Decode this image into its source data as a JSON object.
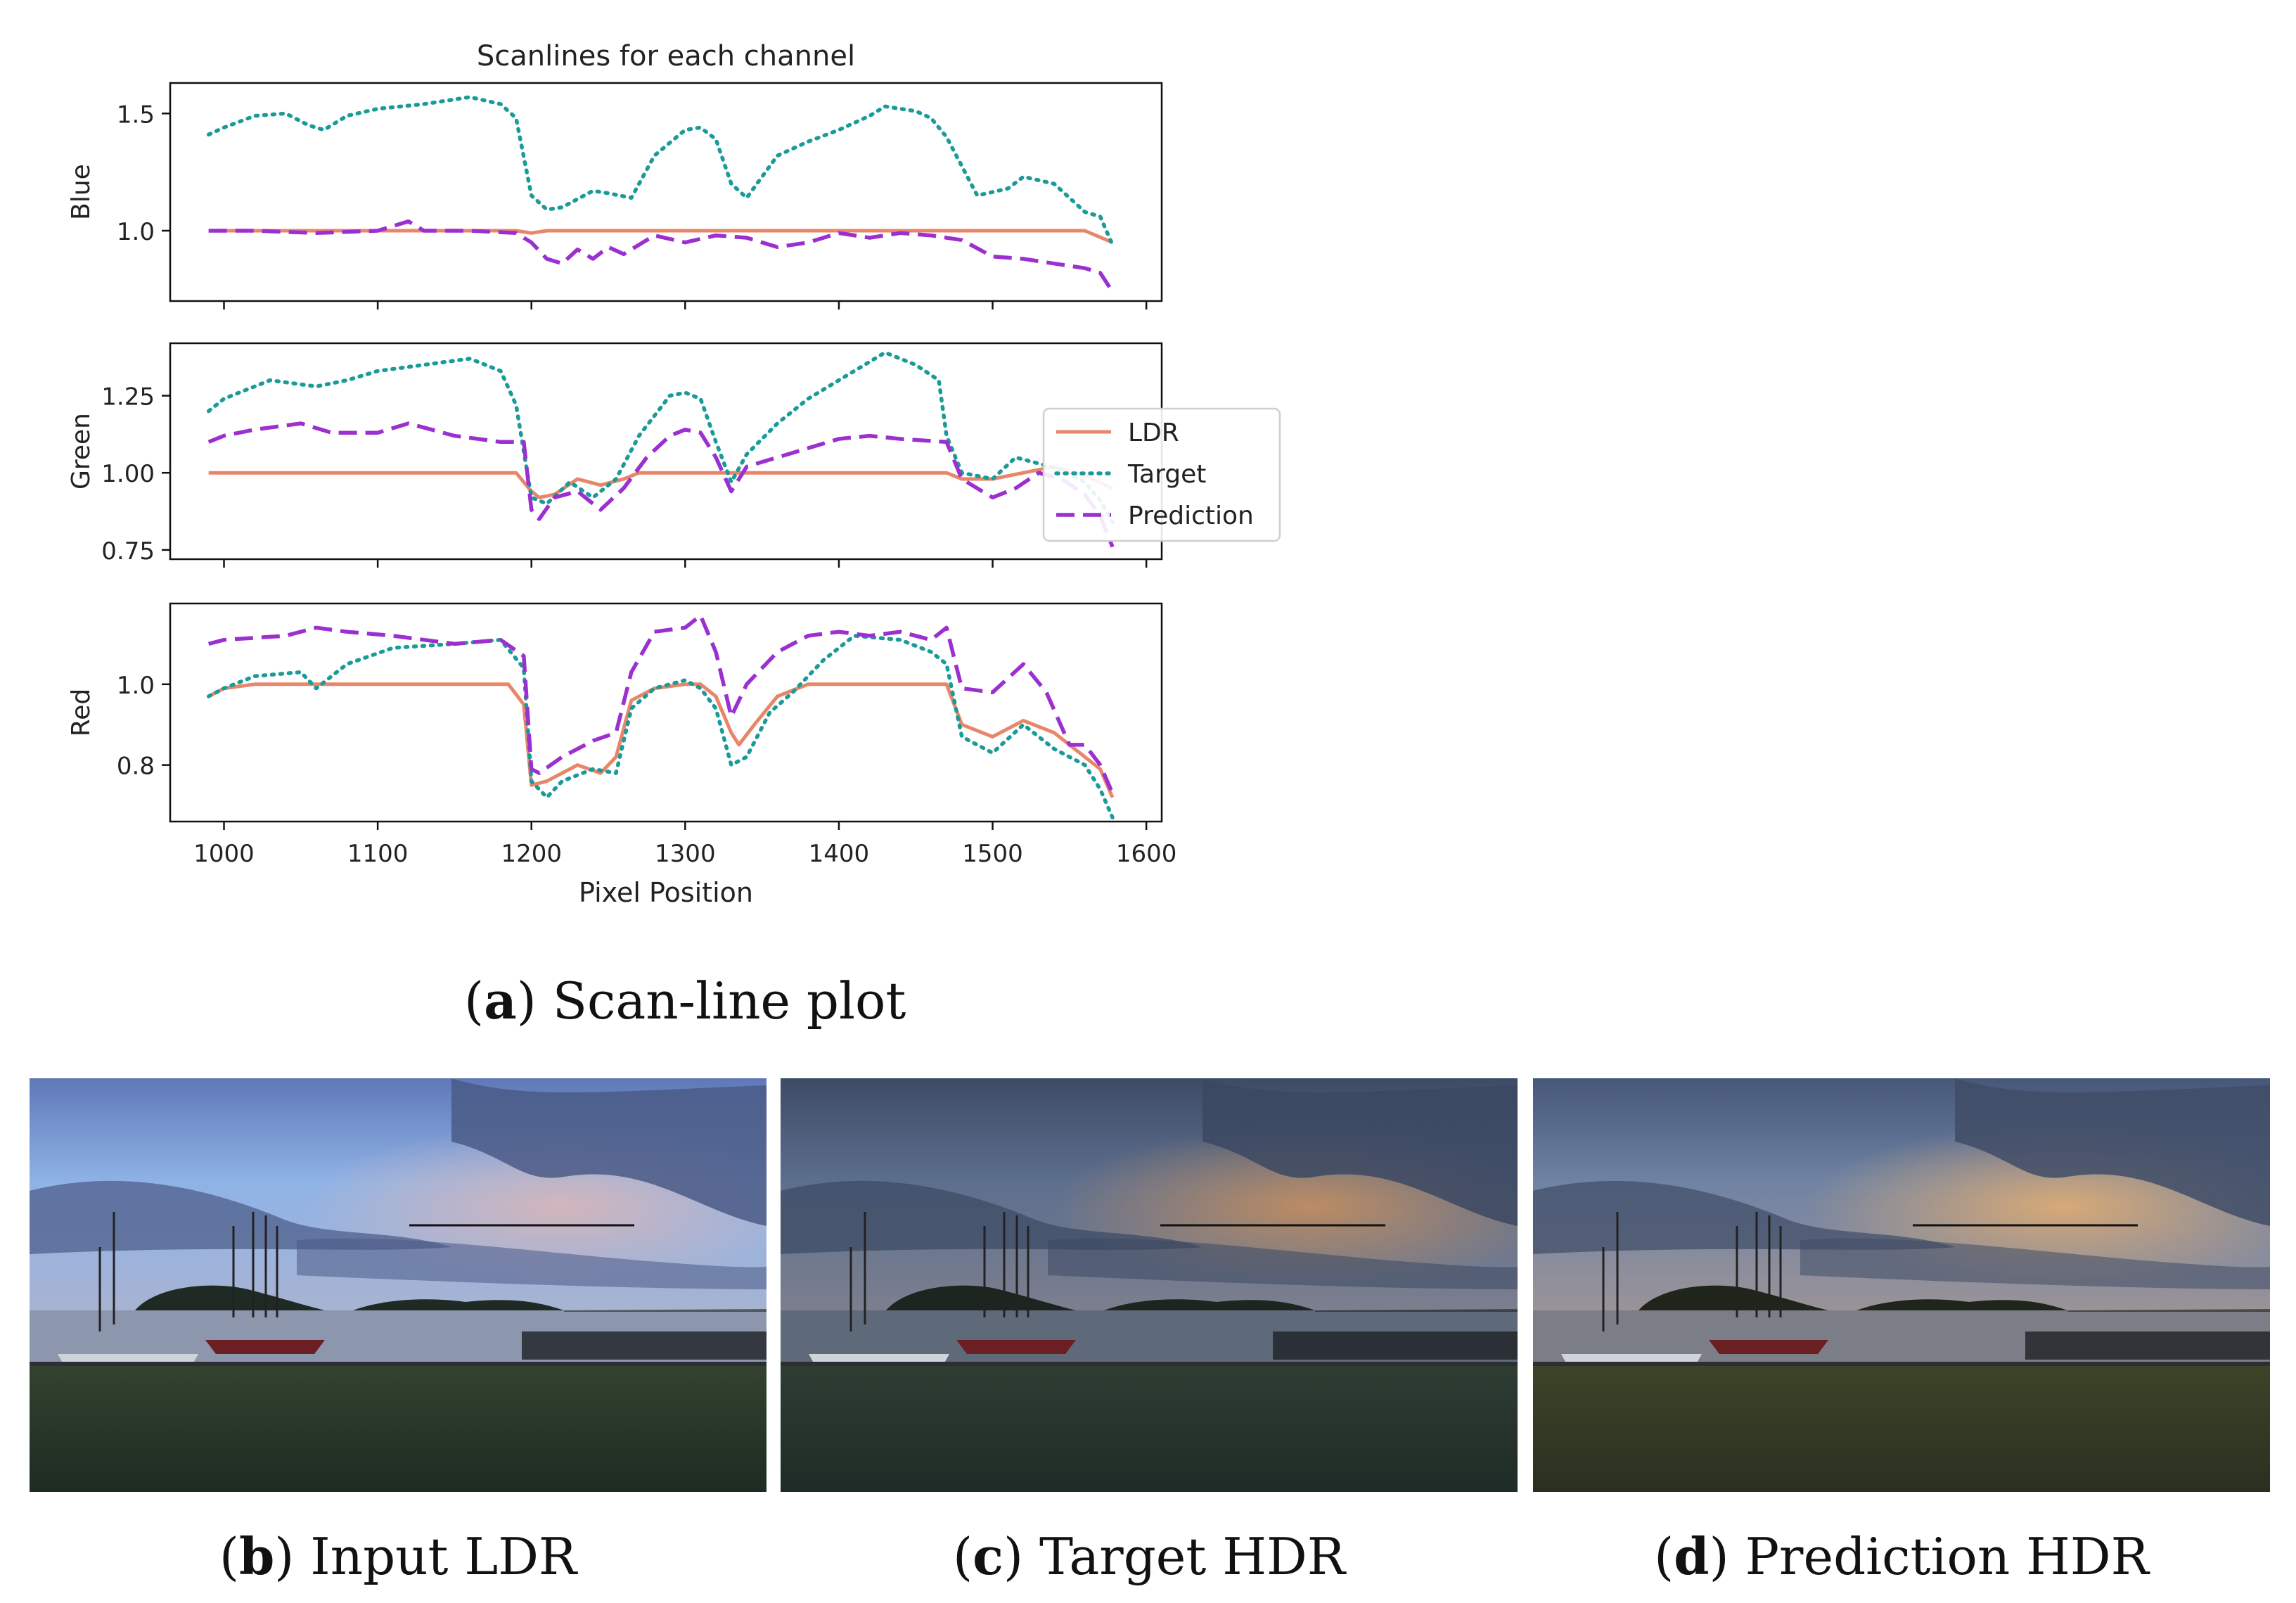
{
  "figure": {
    "chart_caption": {
      "letter": "a",
      "text": "Scan-line plot"
    },
    "photos": [
      {
        "id": "b",
        "letter": "b",
        "text": "Input LDR",
        "tone": "ldr"
      },
      {
        "id": "c",
        "letter": "c",
        "text": "Target HDR",
        "tone": "target"
      },
      {
        "id": "d",
        "letter": "d",
        "text": "Prediction HDR",
        "tone": "prediction"
      }
    ]
  },
  "chart_data": {
    "type": "line",
    "title": "Scanlines for each channel",
    "xlabel": "Pixel Position",
    "xlim": [
      965,
      1610
    ],
    "xticks": [
      1000,
      1100,
      1200,
      1300,
      1400,
      1500,
      1600
    ],
    "legend": {
      "placement": "right of middle panel",
      "entries": [
        "LDR",
        "Target",
        "Prediction"
      ]
    },
    "series_styles": {
      "LDR": {
        "color": "#e8866a",
        "dash": "solid"
      },
      "Target": {
        "color": "#1a9a98",
        "dash": "dotted"
      },
      "Prediction": {
        "color": "#9b2fd0",
        "dash": "dashed"
      }
    },
    "panels": [
      {
        "ylabel": "Blue",
        "ylim": [
          0.7,
          1.63
        ],
        "yticks": [
          1.0,
          1.5
        ],
        "ytick_labels": [
          "1.0",
          "1.5"
        ],
        "series": [
          {
            "name": "LDR",
            "x": [
              990,
              1100,
              1190,
              1200,
              1210,
              1300,
              1400,
              1500,
              1560,
              1578
            ],
            "y": [
              1.0,
              1.0,
              1.0,
              0.99,
              1.0,
              1.0,
              1.0,
              1.0,
              1.0,
              0.95
            ]
          },
          {
            "name": "Target",
            "x": [
              990,
              1000,
              1020,
              1040,
              1055,
              1065,
              1080,
              1100,
              1130,
              1160,
              1180,
              1190,
              1200,
              1210,
              1220,
              1240,
              1250,
              1265,
              1280,
              1300,
              1310,
              1320,
              1330,
              1340,
              1360,
              1380,
              1400,
              1420,
              1430,
              1450,
              1460,
              1470,
              1490,
              1510,
              1520,
              1540,
              1560,
              1570,
              1578
            ],
            "y": [
              1.41,
              1.44,
              1.49,
              1.5,
              1.45,
              1.43,
              1.49,
              1.52,
              1.54,
              1.57,
              1.54,
              1.48,
              1.15,
              1.09,
              1.1,
              1.17,
              1.16,
              1.14,
              1.32,
              1.43,
              1.44,
              1.39,
              1.2,
              1.14,
              1.32,
              1.38,
              1.43,
              1.49,
              1.53,
              1.51,
              1.48,
              1.4,
              1.15,
              1.18,
              1.23,
              1.2,
              1.08,
              1.06,
              0.94
            ]
          },
          {
            "name": "Prediction",
            "x": [
              990,
              1020,
              1060,
              1100,
              1120,
              1130,
              1160,
              1190,
              1200,
              1210,
              1220,
              1230,
              1240,
              1250,
              1260,
              1280,
              1300,
              1320,
              1340,
              1360,
              1380,
              1400,
              1420,
              1440,
              1460,
              1480,
              1500,
              1520,
              1540,
              1560,
              1570,
              1578
            ],
            "y": [
              1.0,
              1.0,
              0.99,
              1.0,
              1.04,
              1.0,
              1.0,
              0.99,
              0.95,
              0.88,
              0.86,
              0.92,
              0.88,
              0.93,
              0.9,
              0.98,
              0.95,
              0.98,
              0.97,
              0.93,
              0.95,
              0.99,
              0.97,
              0.99,
              0.98,
              0.96,
              0.89,
              0.88,
              0.86,
              0.84,
              0.82,
              0.74
            ]
          }
        ]
      },
      {
        "ylabel": "Green",
        "ylim": [
          0.72,
          1.42
        ],
        "yticks": [
          0.75,
          1.0,
          1.25
        ],
        "ytick_labels": [
          "0.75",
          "1.00",
          "1.25"
        ],
        "series": [
          {
            "name": "LDR",
            "x": [
              990,
              1100,
              1190,
              1200,
              1205,
              1215,
              1230,
              1245,
              1260,
              1270,
              1300,
              1400,
              1470,
              1480,
              1500,
              1520,
              1540,
              1560,
              1578
            ],
            "y": [
              1.0,
              1.0,
              1.0,
              0.94,
              0.92,
              0.93,
              0.98,
              0.96,
              0.98,
              1.0,
              1.0,
              1.0,
              1.0,
              0.98,
              0.98,
              1.0,
              1.02,
              0.99,
              0.95
            ]
          },
          {
            "name": "Target",
            "x": [
              990,
              1000,
              1030,
              1060,
              1080,
              1100,
              1130,
              1160,
              1180,
              1190,
              1200,
              1210,
              1225,
              1240,
              1255,
              1270,
              1290,
              1300,
              1310,
              1320,
              1330,
              1340,
              1360,
              1380,
              1400,
              1420,
              1430,
              1450,
              1465,
              1470,
              1480,
              1500,
              1515,
              1530,
              1545,
              1560,
              1570,
              1578
            ],
            "y": [
              1.2,
              1.24,
              1.3,
              1.28,
              1.3,
              1.33,
              1.35,
              1.37,
              1.33,
              1.22,
              0.92,
              0.9,
              0.97,
              0.92,
              0.98,
              1.12,
              1.25,
              1.26,
              1.24,
              1.1,
              0.97,
              1.06,
              1.16,
              1.24,
              1.3,
              1.36,
              1.39,
              1.35,
              1.3,
              1.12,
              1.0,
              0.98,
              1.05,
              1.03,
              1.01,
              0.97,
              0.91,
              0.84
            ]
          },
          {
            "name": "Prediction",
            "x": [
              990,
              1000,
              1020,
              1050,
              1070,
              1100,
              1120,
              1150,
              1180,
              1195,
              1200,
              1205,
              1215,
              1230,
              1245,
              1260,
              1275,
              1290,
              1300,
              1310,
              1320,
              1330,
              1340,
              1360,
              1380,
              1400,
              1420,
              1440,
              1470,
              1480,
              1500,
              1515,
              1530,
              1545,
              1560,
              1570,
              1578
            ],
            "y": [
              1.1,
              1.12,
              1.14,
              1.16,
              1.13,
              1.13,
              1.16,
              1.12,
              1.1,
              1.1,
              0.88,
              0.85,
              0.92,
              0.94,
              0.88,
              0.95,
              1.05,
              1.12,
              1.14,
              1.13,
              1.05,
              0.94,
              1.02,
              1.05,
              1.08,
              1.11,
              1.12,
              1.11,
              1.1,
              0.98,
              0.92,
              0.95,
              1.0,
              0.98,
              0.93,
              0.86,
              0.76
            ]
          }
        ]
      },
      {
        "ylabel": "Red",
        "ylim": [
          0.66,
          1.2
        ],
        "yticks": [
          0.8,
          1.0
        ],
        "ytick_labels": [
          "0.8",
          "1.0"
        ],
        "series": [
          {
            "name": "LDR",
            "x": [
              990,
              1000,
              1020,
              1100,
              1185,
              1195,
              1200,
              1210,
              1230,
              1245,
              1255,
              1265,
              1280,
              1300,
              1310,
              1320,
              1330,
              1335,
              1345,
              1360,
              1380,
              1470,
              1480,
              1500,
              1520,
              1540,
              1560,
              1570,
              1578
            ],
            "y": [
              0.97,
              0.99,
              1.0,
              1.0,
              1.0,
              0.95,
              0.75,
              0.76,
              0.8,
              0.78,
              0.82,
              0.96,
              0.99,
              1.0,
              1.0,
              0.97,
              0.88,
              0.85,
              0.9,
              0.97,
              1.0,
              1.0,
              0.9,
              0.87,
              0.91,
              0.88,
              0.82,
              0.79,
              0.72
            ]
          },
          {
            "name": "Target",
            "x": [
              990,
              1000,
              1020,
              1050,
              1060,
              1080,
              1110,
              1150,
              1180,
              1195,
              1200,
              1210,
              1220,
              1240,
              1255,
              1265,
              1280,
              1300,
              1310,
              1320,
              1330,
              1340,
              1355,
              1370,
              1390,
              1410,
              1440,
              1460,
              1470,
              1480,
              1500,
              1520,
              1540,
              1560,
              1570,
              1578
            ],
            "y": [
              0.97,
              0.99,
              1.02,
              1.03,
              0.99,
              1.05,
              1.09,
              1.1,
              1.11,
              1.04,
              0.76,
              0.72,
              0.76,
              0.79,
              0.78,
              0.94,
              0.99,
              1.01,
              0.99,
              0.94,
              0.8,
              0.82,
              0.93,
              0.98,
              1.06,
              1.12,
              1.11,
              1.08,
              1.05,
              0.87,
              0.83,
              0.9,
              0.84,
              0.8,
              0.74,
              0.67
            ]
          },
          {
            "name": "Prediction",
            "x": [
              990,
              1000,
              1040,
              1060,
              1080,
              1110,
              1150,
              1180,
              1195,
              1200,
              1205,
              1220,
              1240,
              1255,
              1265,
              1280,
              1300,
              1310,
              1320,
              1330,
              1340,
              1360,
              1380,
              1400,
              1420,
              1440,
              1460,
              1470,
              1480,
              1500,
              1520,
              1535,
              1550,
              1560,
              1570,
              1578
            ],
            "y": [
              1.1,
              1.11,
              1.12,
              1.14,
              1.13,
              1.12,
              1.1,
              1.11,
              1.07,
              0.79,
              0.78,
              0.82,
              0.86,
              0.88,
              1.03,
              1.13,
              1.14,
              1.17,
              1.08,
              0.92,
              1.0,
              1.08,
              1.12,
              1.13,
              1.12,
              1.13,
              1.11,
              1.14,
              0.99,
              0.98,
              1.05,
              0.98,
              0.85,
              0.85,
              0.8,
              0.73
            ]
          }
        ]
      }
    ]
  }
}
